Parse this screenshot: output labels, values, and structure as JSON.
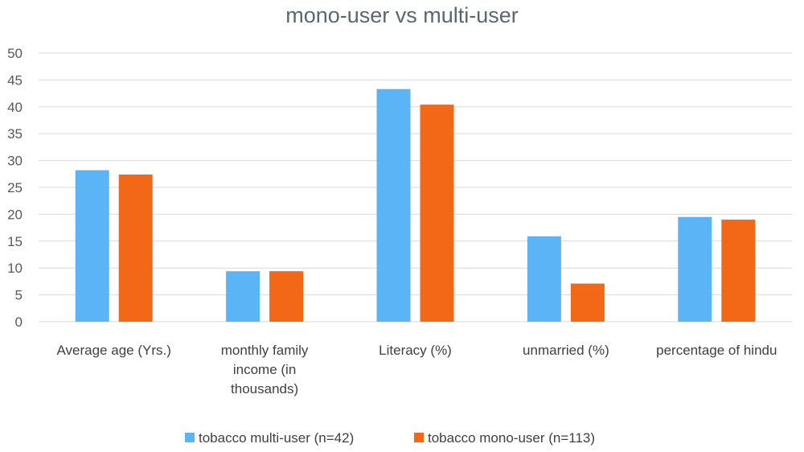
{
  "chart_data": {
    "type": "bar",
    "title": "mono-user vs multi-user",
    "categories": [
      [
        "Average age (Yrs.)"
      ],
      [
        "monthly family",
        "income (in",
        "thousands)"
      ],
      [
        "Literacy (%)"
      ],
      [
        "unmarried (%)"
      ],
      [
        "percentage of hindu"
      ]
    ],
    "series": [
      {
        "name": "tobacco multi-user (n=42)",
        "color": "#5bb4f6",
        "values": [
          28.2,
          9.4,
          43.3,
          15.9,
          19.5
        ]
      },
      {
        "name": "tobacco mono-user (n=113)",
        "color": "#f26817",
        "values": [
          27.4,
          9.4,
          40.4,
          7.1,
          19.0
        ]
      }
    ],
    "ylim": [
      0,
      50
    ],
    "yticks": [
      0,
      5,
      10,
      15,
      20,
      25,
      30,
      35,
      40,
      45,
      50
    ],
    "grid": true,
    "legend_position": "bottom"
  }
}
